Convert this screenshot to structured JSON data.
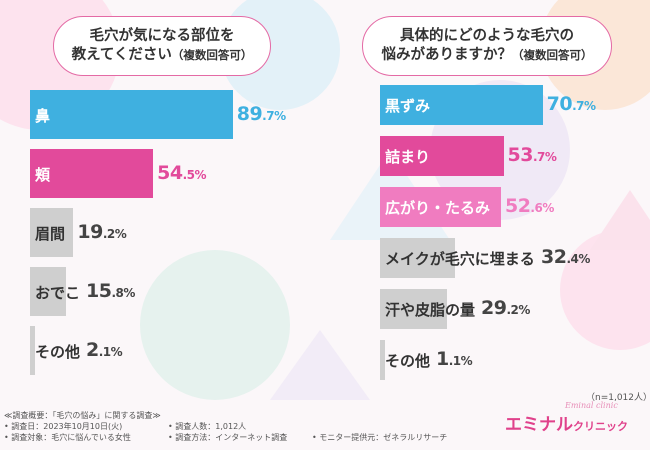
{
  "left_panel": {
    "question_line1": "毛穴が気になる部位を",
    "question_line2": "教えてください",
    "question_note": "（複数回答可）"
  },
  "right_panel": {
    "question_line1": "具体的にどのような毛穴の",
    "question_line2": "悩みがありますか？",
    "question_note": "（複数回答可）",
    "sample_note": "（n=1,012人）"
  },
  "chart_data": [
    {
      "type": "bar",
      "orientation": "horizontal",
      "title": "毛穴が気になる部位を教えてください（複数回答可）",
      "categories": [
        "鼻",
        "頬",
        "眉間",
        "おでこ",
        "その他"
      ],
      "values": [
        89.7,
        54.5,
        19.2,
        15.8,
        2.1
      ],
      "unit": "%",
      "colors": [
        "#3fb0e0",
        "#e24a9b",
        "#cfcfcf",
        "#cfcfcf",
        "#cfcfcf"
      ],
      "xlim": [
        0,
        100
      ]
    },
    {
      "type": "bar",
      "orientation": "horizontal",
      "title": "具体的にどのような毛穴の悩みがありますか？（複数回答可）",
      "categories": [
        "黒ずみ",
        "詰まり",
        "広がり・たるみ",
        "メイクが毛穴に埋まる",
        "汗や皮脂の量",
        "その他"
      ],
      "values": [
        70.7,
        53.7,
        52.6,
        32.4,
        29.2,
        1.1
      ],
      "unit": "%",
      "colors": [
        "#3fb0e0",
        "#e24a9b",
        "#f07cc0",
        "#cfcfcf",
        "#cfcfcf",
        "#cfcfcf"
      ],
      "xlim": [
        0,
        100
      ]
    }
  ],
  "footer": {
    "title": "≪調査概要：「毛穴の悩み」に関する調査≫",
    "date": "• 調査日：2023年10月10日(火)",
    "target": "• 調査対象：毛穴に悩んでいる女性",
    "count": "• 調査人数：1,012人",
    "method": "• 調査方法：インターネット調査",
    "provider": "• モニター提供元：ゼネラルリサーチ"
  },
  "brand": {
    "name": "エミナル",
    "sub": "クリニック",
    "script": "Eminal clinic"
  }
}
